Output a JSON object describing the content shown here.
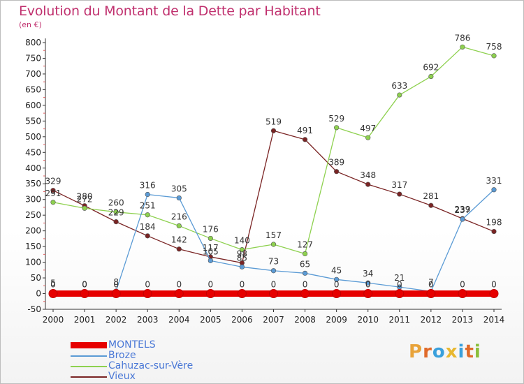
{
  "header": {
    "title": "Evolution du Montant de la Dette par Habitant",
    "subtitle": "(en €)"
  },
  "logo": {
    "text": "Proxiti",
    "letters": [
      "P",
      "r",
      "o",
      "x",
      "i",
      "t",
      "i"
    ],
    "colors": [
      "#e8a33a",
      "#e06a2a",
      "#3aa0dc",
      "#e8b830",
      "#3aa0dc",
      "#e06a2a",
      "#8abf3a"
    ]
  },
  "chart_data": {
    "type": "line",
    "title": "Evolution du Montant de la Dette par Habitant",
    "subtitle": "(en €)",
    "x": [
      "2000",
      "2001",
      "2002",
      "2003",
      "2004",
      "2005",
      "2006",
      "2007",
      "2008",
      "2009",
      "2010",
      "2011",
      "2012",
      "2013",
      "2014"
    ],
    "ylim": [
      -50,
      800
    ],
    "yticks": [
      -50,
      0,
      50,
      100,
      150,
      200,
      250,
      300,
      350,
      400,
      450,
      500,
      550,
      600,
      650,
      700,
      750,
      800
    ],
    "grid": false,
    "legend_position": "bottom-left",
    "series": [
      {
        "name": "MONTELS",
        "color": "#e60000",
        "values": [
          0,
          0,
          0,
          0,
          0,
          0,
          0,
          0,
          0,
          0,
          0,
          0,
          0,
          0,
          0
        ]
      },
      {
        "name": "Broze",
        "color": "#5b9bd5",
        "values": [
          5,
          0,
          8,
          316,
          305,
          105,
          85,
          73,
          65,
          45,
          34,
          21,
          7,
          237,
          331
        ]
      },
      {
        "name": "Cahuzac-sur-Vère",
        "color": "#8ed14f",
        "values": [
          291,
          272,
          260,
          251,
          216,
          176,
          140,
          157,
          127,
          529,
          497,
          633,
          692,
          786,
          758
        ]
      },
      {
        "name": "Vieux",
        "color": "#7a2424",
        "values": [
          329,
          280,
          229,
          184,
          142,
          117,
          98,
          519,
          491,
          389,
          348,
          317,
          281,
          239,
          198
        ]
      }
    ]
  }
}
